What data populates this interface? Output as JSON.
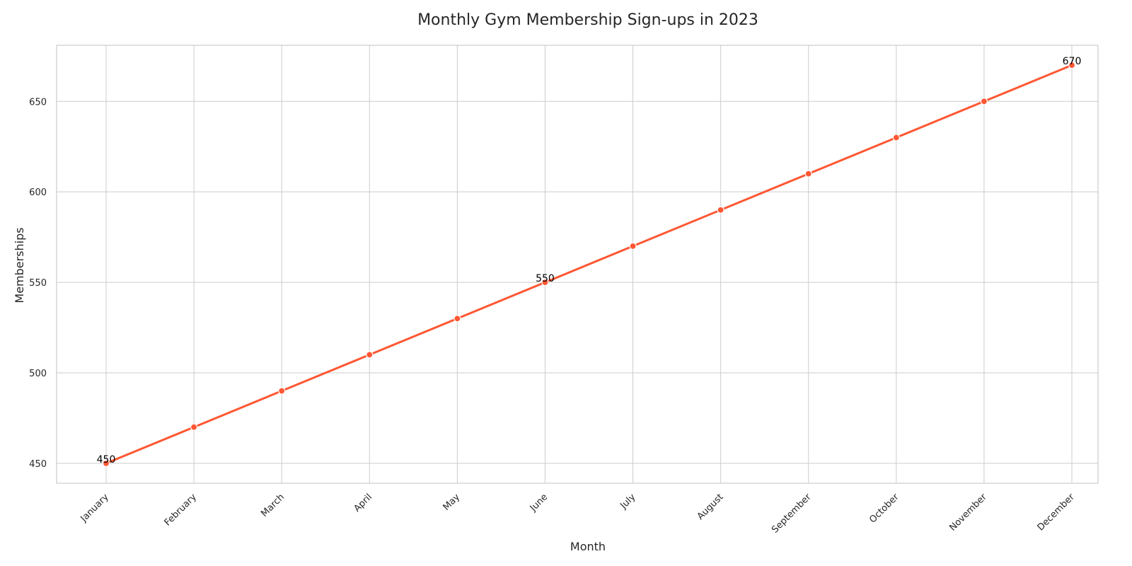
{
  "chart_data": {
    "type": "line",
    "title": "Monthly Gym Membership Sign-ups in 2023",
    "xlabel": "Month",
    "ylabel": "Memberships",
    "categories": [
      "January",
      "February",
      "March",
      "April",
      "May",
      "June",
      "July",
      "August",
      "September",
      "October",
      "November",
      "December"
    ],
    "series": [
      {
        "values": [
          450,
          470,
          490,
          510,
          530,
          550,
          570,
          590,
          610,
          630,
          650,
          670
        ],
        "color": "#ff5733"
      }
    ],
    "ylim": [
      439,
      681
    ],
    "yticks": [
      450,
      500,
      550,
      600,
      650
    ],
    "grid": true,
    "annotations": [
      {
        "category": "January",
        "value": 450,
        "text": "450"
      },
      {
        "category": "June",
        "value": 550,
        "text": "550"
      },
      {
        "category": "December",
        "value": 670,
        "text": "670"
      }
    ]
  }
}
